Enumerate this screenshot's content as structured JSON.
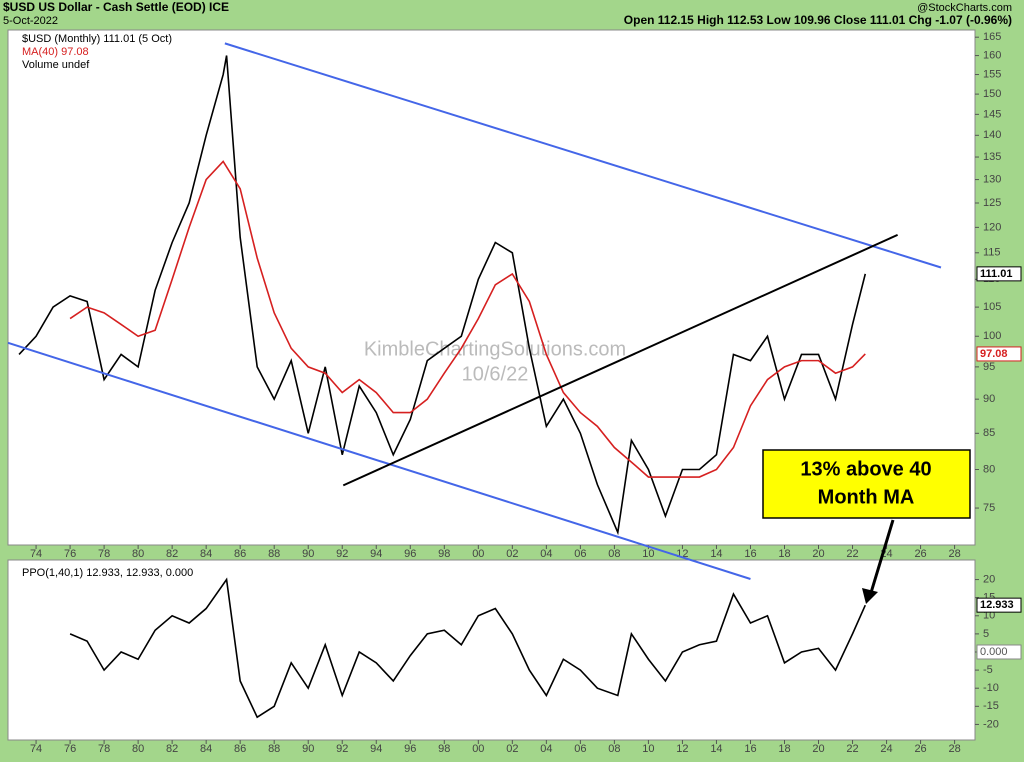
{
  "chart_data": [
    {
      "type": "line",
      "title": "$USD US Dollar - Cash Settle (EOD) ICE",
      "subtitle": "5-Oct-2022",
      "quote": "Open 112.15 High 112.53 Low 109.96 Close 111.01 Chg -1.07 (-0.96%)",
      "source": "@StockCharts.com",
      "log_scale": true,
      "grid": false,
      "xlim": [
        1972.35,
        2029.2
      ],
      "ylim": [
        70.5,
        167
      ],
      "xticks": [
        {
          "value": 1974,
          "label": "74"
        },
        {
          "value": 1976,
          "label": "76"
        },
        {
          "value": 1978,
          "label": "78"
        },
        {
          "value": 1980,
          "label": "80"
        },
        {
          "value": 1982,
          "label": "82"
        },
        {
          "value": 1984,
          "label": "84"
        },
        {
          "value": 1986,
          "label": "86"
        },
        {
          "value": 1988,
          "label": "88"
        },
        {
          "value": 1990,
          "label": "90"
        },
        {
          "value": 1992,
          "label": "92"
        },
        {
          "value": 1994,
          "label": "94"
        },
        {
          "value": 1996,
          "label": "96"
        },
        {
          "value": 1998,
          "label": "98"
        },
        {
          "value": 2000,
          "label": "00"
        },
        {
          "value": 2002,
          "label": "02"
        },
        {
          "value": 2004,
          "label": "04"
        },
        {
          "value": 2006,
          "label": "06"
        },
        {
          "value": 2008,
          "label": "08"
        },
        {
          "value": 2010,
          "label": "10"
        },
        {
          "value": 2012,
          "label": "12"
        },
        {
          "value": 2014,
          "label": "14"
        },
        {
          "value": 2016,
          "label": "16"
        },
        {
          "value": 2018,
          "label": "18"
        },
        {
          "value": 2020,
          "label": "20"
        },
        {
          "value": 2022,
          "label": "22"
        },
        {
          "value": 2024,
          "label": "24"
        },
        {
          "value": 2026,
          "label": "26"
        },
        {
          "value": 2028,
          "label": "28"
        }
      ],
      "yticks": [
        75,
        80,
        85,
        90,
        95,
        100,
        105,
        110,
        115,
        120,
        125,
        130,
        135,
        140,
        145,
        150,
        155,
        160,
        165
      ],
      "series": [
        {
          "name": "$USD (Monthly) 111.01 (5 Oct)",
          "color": "#000000",
          "x": [
            1973,
            1974,
            1975,
            1976,
            1977,
            1978,
            1979,
            1980,
            1981,
            1982,
            1983,
            1984,
            1985,
            1985.2,
            1986,
            1987,
            1988,
            1989,
            1990,
            1991,
            1992,
            1993,
            1994,
            1995,
            1996,
            1997,
            1998,
            1999,
            2000,
            2001,
            2002,
            2003,
            2004,
            2005,
            2006,
            2007,
            2008.2,
            2009,
            2010,
            2011,
            2012,
            2013,
            2014,
            2015,
            2016,
            2017,
            2018,
            2019,
            2020,
            2021,
            2022,
            2022.75
          ],
          "values": [
            97,
            100,
            105,
            107,
            106,
            93,
            97,
            95,
            108,
            117,
            125,
            140,
            155,
            160,
            118,
            95,
            90,
            96,
            85,
            95,
            82,
            92,
            88,
            82,
            87,
            96,
            98,
            100,
            110,
            117,
            115,
            98,
            86,
            90,
            85,
            78,
            72,
            84,
            80,
            74,
            80,
            80,
            82,
            97,
            96,
            100,
            90,
            97,
            97,
            90,
            102,
            111.01
          ]
        },
        {
          "name": "MA(40) 97.08",
          "color": "#d62020",
          "x": [
            1976,
            1977,
            1978,
            1979,
            1980,
            1981,
            1982,
            1983,
            1984,
            1985,
            1986,
            1987,
            1988,
            1989,
            1990,
            1991,
            1992,
            1993,
            1994,
            1995,
            1996,
            1997,
            1998,
            1999,
            2000,
            2001,
            2002,
            2003,
            2004,
            2005,
            2006,
            2007,
            2008,
            2009,
            2010,
            2011,
            2012,
            2013,
            2014,
            2015,
            2016,
            2017,
            2018,
            2019,
            2020,
            2021,
            2022,
            2022.75
          ],
          "values": [
            103,
            105,
            104,
            102,
            100,
            101,
            110,
            120,
            130,
            134,
            128,
            114,
            104,
            98,
            95,
            94,
            91,
            93,
            91,
            88,
            88,
            90,
            94,
            98,
            103,
            109,
            111,
            106,
            97,
            91,
            88,
            86,
            83,
            81,
            79,
            79,
            79,
            79,
            80,
            83,
            89,
            93,
            95,
            96,
            96,
            94,
            95,
            97.08
          ]
        }
      ],
      "legend_extra": "Volume undef",
      "watermark": [
        "KimbleChartingSolutions.com",
        "10/6/22"
      ],
      "trendlines": [
        {
          "color": "#4466e8",
          "x": [
            1985.1,
            2027.2
          ],
          "values": [
            163.3,
            112.2
          ]
        },
        {
          "color": "#4466e8",
          "x": [
            1972.35,
            2016
          ],
          "values": [
            98.9,
            66.6
          ]
        },
        {
          "color": "#000000",
          "x": [
            1992.06,
            2024.65
          ],
          "values": [
            77.9,
            118.5
          ]
        }
      ],
      "callout": [
        "13% above 40",
        "Month MA"
      ]
    },
    {
      "type": "line",
      "log_scale": false,
      "xlim": [
        1972.35,
        2029.2
      ],
      "ylim": [
        -24.3,
        25.4
      ],
      "yticks": [
        -20,
        -15,
        -10,
        -5,
        0,
        5,
        10,
        15,
        20
      ],
      "series": [
        {
          "name": "PPO(1,40,1) 12.933, 12.933, 0.000",
          "color": "#000000",
          "x": [
            1976,
            1977,
            1978,
            1979,
            1980,
            1981,
            1982,
            1983,
            1984,
            1985.2,
            1986,
            1987,
            1988,
            1989,
            1990,
            1991,
            1992,
            1993,
            1994,
            1995,
            1996,
            1997,
            1998,
            1999,
            2000,
            2001,
            2002,
            2003,
            2004,
            2005,
            2006,
            2007,
            2008.2,
            2009,
            2010,
            2011,
            2012,
            2013,
            2014,
            2015,
            2016,
            2017,
            2018,
            2019,
            2020,
            2021,
            2022,
            2022.75
          ],
          "values": [
            5,
            3,
            -5,
            0,
            -2,
            6,
            10,
            8,
            12,
            20,
            -8,
            -18,
            -15,
            -3,
            -10,
            2,
            -12,
            0,
            -3,
            -8,
            -1,
            5,
            6,
            2,
            10,
            12,
            5,
            -5,
            -12,
            -2,
            -5,
            -10,
            -12,
            5,
            -2,
            -8,
            0,
            2,
            3,
            16,
            8,
            10,
            -3,
            0,
            1,
            -5,
            5,
            12.933
          ]
        }
      ],
      "tags": [
        {
          "value": 0,
          "label": "0.000"
        }
      ]
    }
  ]
}
